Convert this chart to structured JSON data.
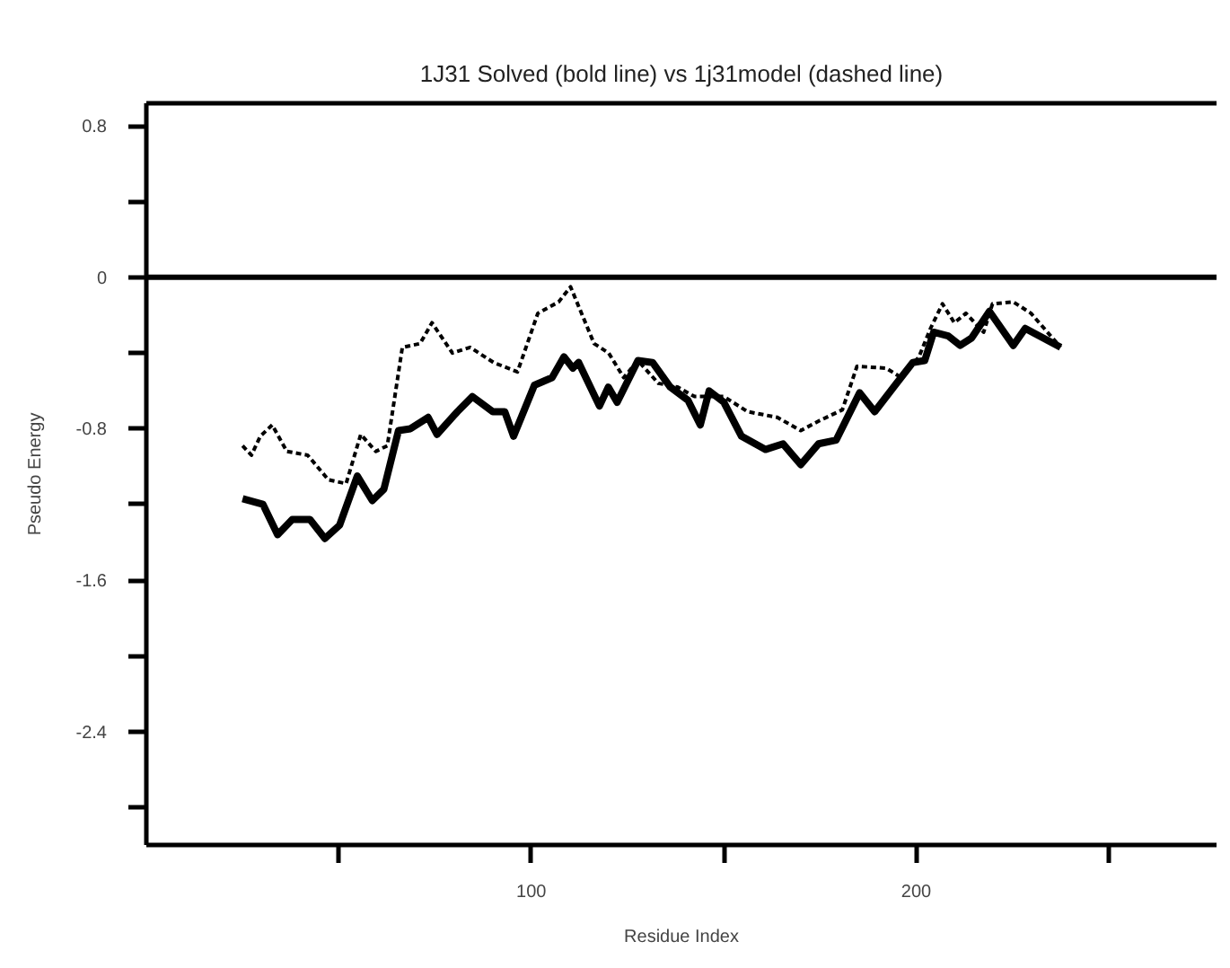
{
  "chart_data": {
    "type": "line",
    "title": "1J31 Solved (bold line) vs 1j31model (dashed line)",
    "xlabel": "Residue Index",
    "ylabel": "Pseudo Energy",
    "xlim": [
      0,
      278
    ],
    "ylim": [
      -3.0,
      0.92
    ],
    "xticks": [
      {
        "value": 50,
        "label": null
      },
      100,
      {
        "value": 150,
        "label": null
      },
      200,
      {
        "value": 250,
        "label": null
      }
    ],
    "yticks": [
      {
        "value": 0.8,
        "label": "0.8"
      },
      {
        "value": 0.4,
        "label": null
      },
      0,
      {
        "value": -0.4,
        "label": null
      },
      {
        "value": -0.8,
        "label": "-0.8"
      },
      {
        "value": -1.2,
        "label": null
      },
      {
        "value": -1.6,
        "label": "-1.6"
      },
      {
        "value": -2.0,
        "label": null
      },
      {
        "value": -2.4,
        "label": "-2.4"
      },
      {
        "value": -2.8,
        "label": null
      }
    ],
    "grid": false,
    "marker": "none",
    "ref_lines": [
      {
        "axis": "y",
        "value": 0,
        "color": "#000000"
      }
    ],
    "series": [
      {
        "color": "#000000",
        "line_style": "solid",
        "x": [
          25,
          30.3,
          34.1,
          37.9,
          42.5,
          46.4,
          50.2,
          54.8,
          58.7,
          61.7,
          65.5,
          68.6,
          73.2,
          75.5,
          80.8,
          84.7,
          90,
          93.1,
          95.4,
          100.8,
          105.4,
          108.5,
          110.8,
          112.3,
          117.7,
          120,
          122.3,
          127.7,
          131.5,
          136.1,
          140.7,
          143.9,
          146.2,
          150,
          154.6,
          160.8,
          165.4,
          170,
          174.6,
          179.2,
          185.3,
          189.2,
          194.5,
          199.1,
          202.2,
          204.5,
          208.3,
          211.4,
          214.4,
          219,
          225.2,
          228.3,
          232.9,
          237.5
        ],
        "values": [
          -1.17,
          -1.2,
          -1.36,
          -1.28,
          -1.28,
          -1.38,
          -1.31,
          -1.05,
          -1.18,
          -1.12,
          -0.81,
          -0.8,
          -0.74,
          -0.83,
          -0.71,
          -0.63,
          -0.71,
          -0.71,
          -0.84,
          -0.57,
          -0.53,
          -0.42,
          -0.48,
          -0.45,
          -0.68,
          -0.58,
          -0.66,
          -0.44,
          -0.45,
          -0.58,
          -0.65,
          -0.78,
          -0.6,
          -0.66,
          -0.84,
          -0.91,
          -0.88,
          -0.99,
          -0.88,
          -0.86,
          -0.61,
          -0.71,
          -0.57,
          -0.45,
          -0.44,
          -0.29,
          -0.31,
          -0.36,
          -0.32,
          -0.18,
          -0.36,
          -0.27,
          -0.32,
          -0.37
        ]
      },
      {
        "color": "#000000",
        "line_style": "dashed",
        "x": [
          25,
          27.3,
          29.6,
          32.7,
          36.5,
          41.9,
          47.3,
          51.9,
          55.7,
          59.6,
          62.6,
          66.5,
          71.1,
          74.2,
          79.5,
          84.1,
          90.2,
          96.4,
          101.7,
          107.1,
          110.2,
          116.3,
          120.1,
          124,
          127.7,
          133,
          138,
          142.4,
          150,
          156.2,
          163.9,
          170,
          174.6,
          180.8,
          184.6,
          192.2,
          196.1,
          200.7,
          203.7,
          206.8,
          209.9,
          212.9,
          217.5,
          219.8,
          225.2,
          229.8,
          237.5
        ],
        "values": [
          -0.89,
          -0.94,
          -0.84,
          -0.78,
          -0.92,
          -0.94,
          -1.07,
          -1.09,
          -0.83,
          -0.92,
          -0.89,
          -0.37,
          -0.35,
          -0.24,
          -0.4,
          -0.37,
          -0.45,
          -0.5,
          -0.19,
          -0.13,
          -0.05,
          -0.35,
          -0.4,
          -0.53,
          -0.44,
          -0.56,
          -0.58,
          -0.63,
          -0.63,
          -0.71,
          -0.74,
          -0.81,
          -0.76,
          -0.7,
          -0.47,
          -0.48,
          -0.53,
          -0.42,
          -0.27,
          -0.14,
          -0.24,
          -0.19,
          -0.29,
          -0.14,
          -0.13,
          -0.19,
          -0.37
        ]
      }
    ]
  }
}
